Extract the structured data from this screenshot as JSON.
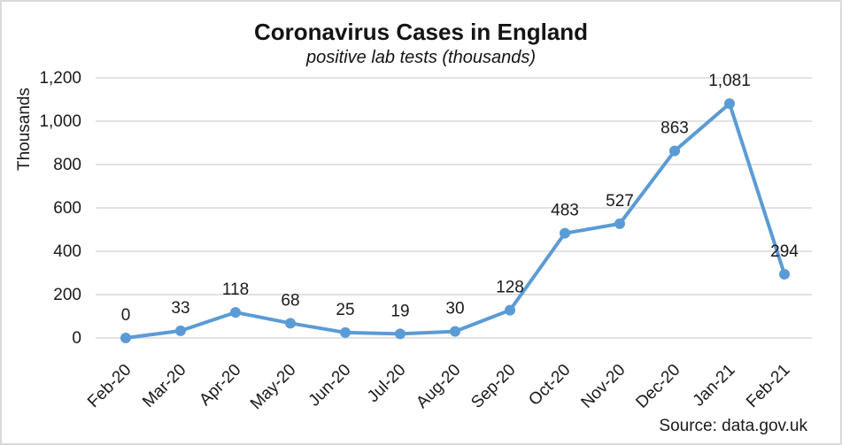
{
  "chart": {
    "title": "Coronavirus Cases in England",
    "subtitle": "positive lab tests (thousands)",
    "y_axis_title": "Thousands",
    "source": "Source: data.gov.uk"
  },
  "chart_data": {
    "type": "line",
    "title": "Coronavirus Cases in England",
    "subtitle": "positive lab tests (thousands)",
    "ylabel": "Thousands",
    "categories": [
      "Feb-20",
      "Mar-20",
      "Apr-20",
      "May-20",
      "Jun-20",
      "Jul-20",
      "Aug-20",
      "Sep-20",
      "Oct-20",
      "Nov-20",
      "Dec-20",
      "Jan-21",
      "Feb-21"
    ],
    "values": [
      0,
      33,
      118,
      68,
      25,
      19,
      30,
      128,
      483,
      527,
      863,
      1081,
      294
    ],
    "data_labels": [
      "0",
      "33",
      "118",
      "68",
      "25",
      "19",
      "30",
      "128",
      "483",
      "527",
      "863",
      "1,081",
      "294"
    ],
    "ylim": [
      0,
      1200
    ],
    "y_ticks": [
      0,
      200,
      400,
      600,
      800,
      1000,
      1200
    ],
    "y_tick_labels": [
      "0",
      "200",
      "400",
      "600",
      "800",
      "1,000",
      "1,200"
    ],
    "grid": true,
    "legend": "none",
    "annotation": "Source: data.gov.uk",
    "line_color": "#5b9bd5",
    "marker_color": "#5b9bd5",
    "gridline_color": "#d9d9d9",
    "text_color": "#1a1a1a"
  }
}
